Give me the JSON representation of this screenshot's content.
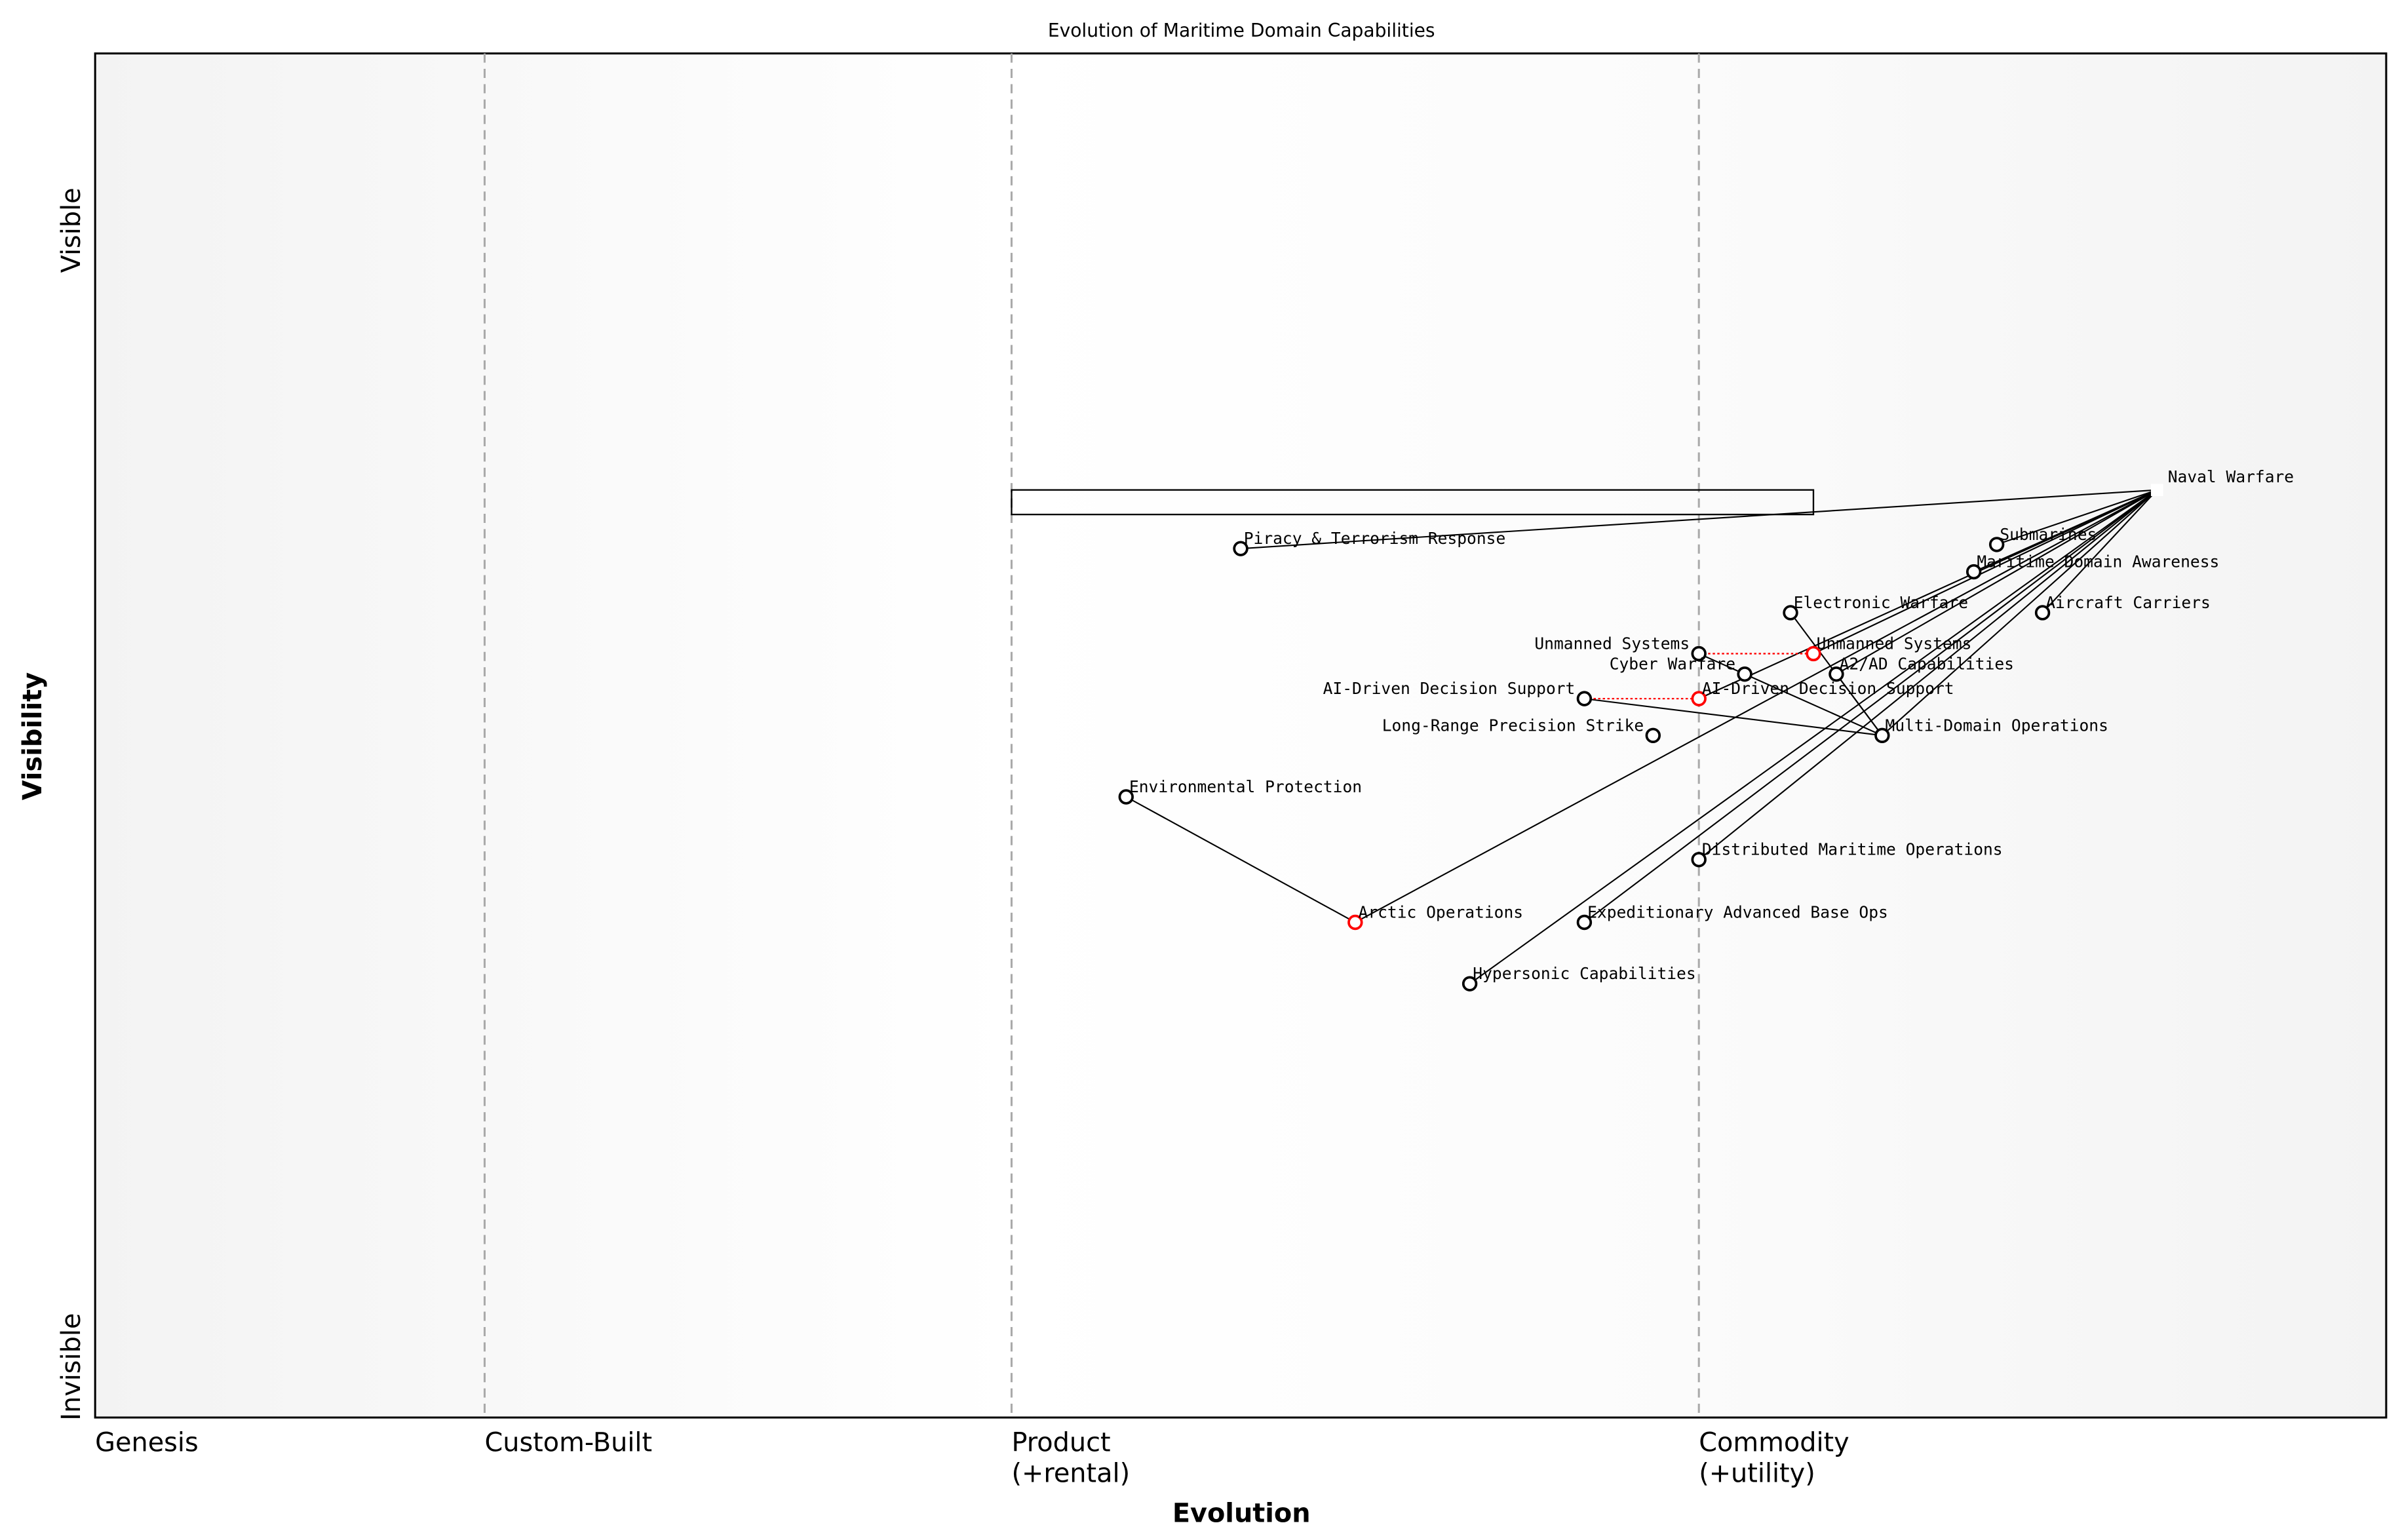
{
  "title": "Evolution of Maritime Domain Capabilities",
  "x_axis": {
    "label": "Evolution",
    "stages": [
      {
        "label": "Genesis",
        "start": 0.0
      },
      {
        "label": "Custom-Built",
        "start": 0.17
      },
      {
        "label": "Product",
        "sub": "(+rental)",
        "start": 0.4
      },
      {
        "label": "Commodity",
        "sub": "(+utility)",
        "start": 0.7
      }
    ]
  },
  "y_axis": {
    "label": "Visibility",
    "top": "Visible",
    "bottom": "Invisible"
  },
  "colors": {
    "node": "#000000",
    "evolved": "#ff0000",
    "link": "#000000",
    "boundary": "#aaaaaa"
  },
  "components": [
    {
      "id": "naval",
      "name": "Naval Warfare",
      "evolution": 0.9,
      "visibility": 0.68,
      "anchor": true
    },
    {
      "id": "subs",
      "name": "Submarines",
      "evolution": 0.83,
      "visibility": 0.64
    },
    {
      "id": "mda",
      "name": "Maritime Domain Awareness",
      "evolution": 0.82,
      "visibility": 0.62
    },
    {
      "id": "carriers",
      "name": "Aircraft Carriers",
      "evolution": 0.85,
      "visibility": 0.59
    },
    {
      "id": "ew",
      "name": "Electronic Warfare",
      "evolution": 0.74,
      "visibility": 0.59
    },
    {
      "id": "unmanned",
      "name": "Unmanned Systems",
      "evolution": 0.7,
      "visibility": 0.56
    },
    {
      "id": "unmanned_e",
      "name": "Unmanned Systems",
      "evolution": 0.75,
      "visibility": 0.56,
      "evolved": true
    },
    {
      "id": "cyber",
      "name": "Cyber Warfare",
      "evolution": 0.72,
      "visibility": 0.545
    },
    {
      "id": "a2ad",
      "name": "A2/AD Capabilities",
      "evolution": 0.76,
      "visibility": 0.545
    },
    {
      "id": "ai",
      "name": "AI-Driven Decision Support",
      "evolution": 0.65,
      "visibility": 0.527
    },
    {
      "id": "ai_e",
      "name": "AI-Driven Decision Support",
      "evolution": 0.7,
      "visibility": 0.527,
      "evolved": true
    },
    {
      "id": "lrps",
      "name": "Long-Range Precision Strike",
      "evolution": 0.68,
      "visibility": 0.5
    },
    {
      "id": "mdo",
      "name": "Multi-Domain Operations",
      "evolution": 0.78,
      "visibility": 0.5
    },
    {
      "id": "env",
      "name": "Environmental Protection",
      "evolution": 0.45,
      "visibility": 0.455
    },
    {
      "id": "piracy",
      "name": "Piracy & Terrorism Response",
      "evolution": 0.5,
      "visibility": 0.637
    },
    {
      "id": "arctic",
      "name": "Arctic Operations",
      "evolution": 0.55,
      "visibility": 0.363,
      "evolved": true
    },
    {
      "id": "dmo",
      "name": "Distributed Maritime Operations",
      "evolution": 0.7,
      "visibility": 0.409
    },
    {
      "id": "eabo",
      "name": "Expeditionary Advanced Base Ops",
      "evolution": 0.65,
      "visibility": 0.363
    },
    {
      "id": "hyper",
      "name": "Hypersonic Capabilities",
      "evolution": 0.6,
      "visibility": 0.318
    }
  ],
  "links": [
    [
      "naval",
      "piracy"
    ],
    [
      "naval",
      "subs"
    ],
    [
      "naval",
      "mda"
    ],
    [
      "naval",
      "carriers"
    ],
    [
      "naval",
      "unmanned_e"
    ],
    [
      "naval",
      "ai_e"
    ],
    [
      "naval",
      "a2ad"
    ],
    [
      "naval",
      "mdo"
    ],
    [
      "naval",
      "dmo"
    ],
    [
      "naval",
      "eabo"
    ],
    [
      "naval",
      "hyper"
    ],
    [
      "naval",
      "arctic"
    ],
    [
      "env",
      "arctic"
    ],
    [
      "ew",
      "mdo"
    ],
    [
      "unmanned",
      "cyber"
    ],
    [
      "cyber",
      "mdo"
    ],
    [
      "ai",
      "mdo"
    ],
    [
      "a2ad",
      "mdo"
    ]
  ],
  "evolutions": [
    [
      "unmanned",
      "unmanned_e"
    ],
    [
      "ai",
      "ai_e"
    ]
  ],
  "pipeline": {
    "evolution_start": 0.4,
    "evolution_end": 0.75,
    "visibility": 0.68
  }
}
